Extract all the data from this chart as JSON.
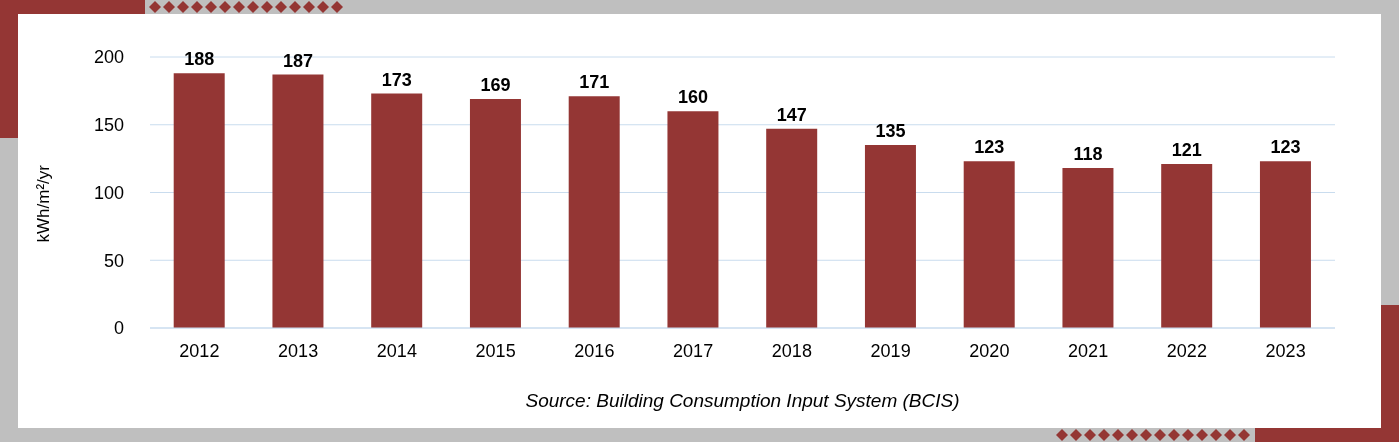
{
  "chart_data": {
    "type": "bar",
    "ylabel": "kWh/m²/yr",
    "categories": [
      "2012",
      "2013",
      "2014",
      "2015",
      "2016",
      "2017",
      "2018",
      "2019",
      "2020",
      "2021",
      "2022",
      "2023"
    ],
    "values": [
      188,
      187,
      173,
      169,
      171,
      160,
      147,
      135,
      123,
      118,
      121,
      123
    ],
    "color": "#943634",
    "ylim": [
      0,
      200
    ],
    "yticks": [
      0,
      50,
      100,
      150,
      200
    ],
    "grid": "y",
    "data_labels": true,
    "annotations": [
      "Source: Building Consumption Input System (BCIS)"
    ]
  }
}
